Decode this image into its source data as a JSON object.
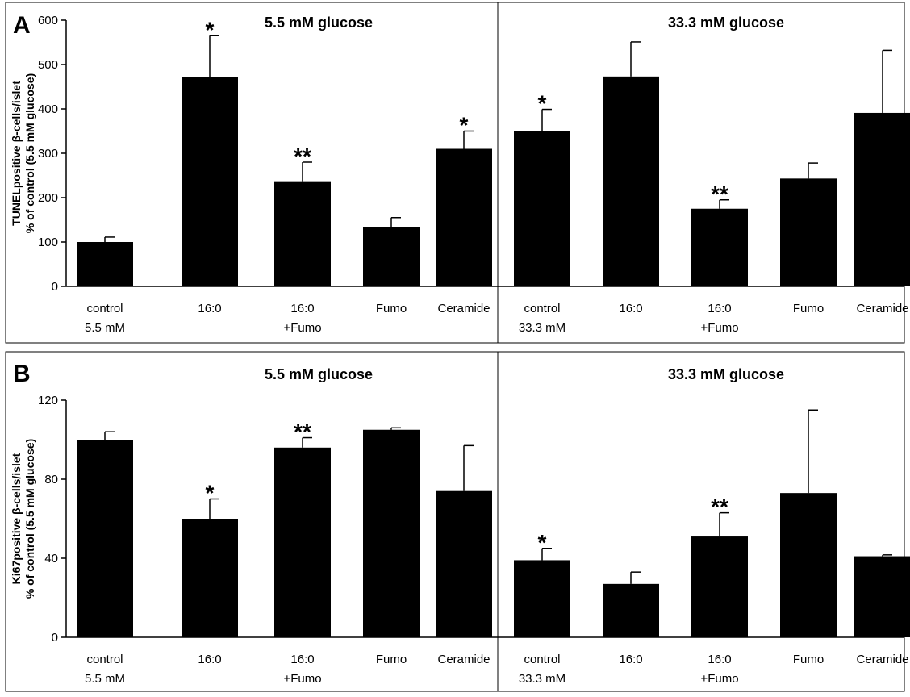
{
  "chart_data": [
    {
      "type": "bar",
      "panel_label": "A",
      "ylabel": [
        "TUNELpositive β-cells/islet",
        "% of control (5.5 mM glucose)"
      ],
      "ylim": [
        0,
        600
      ],
      "yticks": [
        0,
        100,
        200,
        300,
        400,
        500,
        600
      ],
      "grid": false,
      "groups": [
        {
          "title": "5.5 mM glucose",
          "categories": [
            [
              "control",
              "5.5 mM"
            ],
            [
              "16:0"
            ],
            [
              "16:0",
              "+Fumo"
            ],
            [
              "Fumo"
            ],
            [
              "Ceramide"
            ]
          ],
          "values": [
            100,
            472,
            237,
            133,
            310
          ],
          "errors": [
            11,
            93,
            43,
            22,
            40
          ],
          "annotations": [
            "",
            "*",
            "**",
            "",
            "*"
          ]
        },
        {
          "title": "33.3 mM glucose",
          "categories": [
            [
              "control",
              "33.3 mM"
            ],
            [
              "16:0"
            ],
            [
              "16:0",
              "+Fumo"
            ],
            [
              "Fumo"
            ],
            [
              "Ceramide"
            ]
          ],
          "values": [
            350,
            473,
            175,
            243,
            391
          ],
          "errors": [
            49,
            78,
            20,
            35,
            141
          ],
          "annotations": [
            "*",
            "",
            "**",
            "",
            ""
          ]
        }
      ]
    },
    {
      "type": "bar",
      "panel_label": "B",
      "ylabel": [
        "Ki67positive β-cells/islet",
        "% of control (5.5 mM glucose)"
      ],
      "ylim": [
        0,
        120
      ],
      "yticks": [
        0,
        40,
        80,
        120
      ],
      "grid": false,
      "groups": [
        {
          "title": "5.5 mM glucose",
          "categories": [
            [
              "control",
              "5.5 mM"
            ],
            [
              "16:0"
            ],
            [
              "16:0",
              "+Fumo"
            ],
            [
              "Fumo"
            ],
            [
              "Ceramide"
            ]
          ],
          "values": [
            100,
            60,
            96,
            105,
            74
          ],
          "errors": [
            4,
            10,
            5,
            1,
            23
          ],
          "annotations": [
            "",
            "*",
            "**",
            "",
            ""
          ]
        },
        {
          "title": "33.3 mM glucose",
          "categories": [
            [
              "control",
              "33.3 mM"
            ],
            [
              "16:0"
            ],
            [
              "16:0",
              "+Fumo"
            ],
            [
              "Fumo"
            ],
            [
              "Ceramide"
            ]
          ],
          "values": [
            39,
            27,
            51,
            73,
            41
          ],
          "errors": [
            6,
            6,
            12,
            42,
            0.7
          ],
          "annotations": [
            "*",
            "",
            "**",
            "",
            ""
          ]
        }
      ]
    }
  ]
}
